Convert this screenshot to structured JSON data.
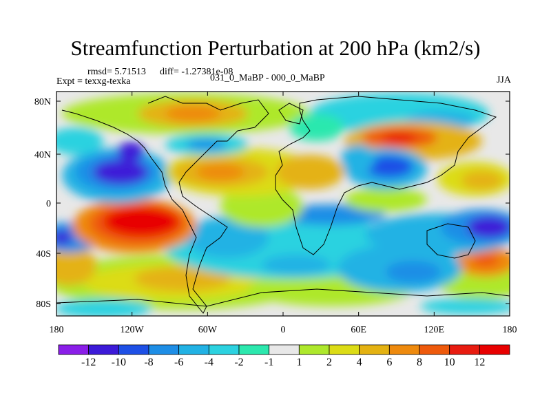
{
  "title": "Streamfunction Perturbation at 200 hPa (km2/s)",
  "stats": {
    "rmsd": "rmsd= 5.71513",
    "diff": "diff= -1.27381e-08",
    "experiment": "Expt = texxg-texka",
    "comparison": "031_0_MaBP - 000_0_MaBP",
    "season": "JJA"
  },
  "axes": {
    "lat_ticks": [
      "80N",
      "40N",
      "0",
      "40S",
      "80S"
    ],
    "lon_ticks": [
      "180",
      "120W",
      "60W",
      "0",
      "60E",
      "120E",
      "180"
    ]
  },
  "colorbar": {
    "labels": [
      "-12",
      "-10",
      "-8",
      "-6",
      "-4",
      "-2",
      "-1",
      "1",
      "2",
      "4",
      "6",
      "8",
      "10",
      "12"
    ],
    "colors": [
      "#8a1ee8",
      "#3c1ad8",
      "#1e50e6",
      "#1e8ee6",
      "#22b2e4",
      "#2cd2e0",
      "#2ce8ae",
      "#e8e8e8",
      "#aee82c",
      "#dcdc16",
      "#e4b212",
      "#ee8a0e",
      "#ee5a0c",
      "#e81c10",
      "#e80000"
    ]
  }
}
